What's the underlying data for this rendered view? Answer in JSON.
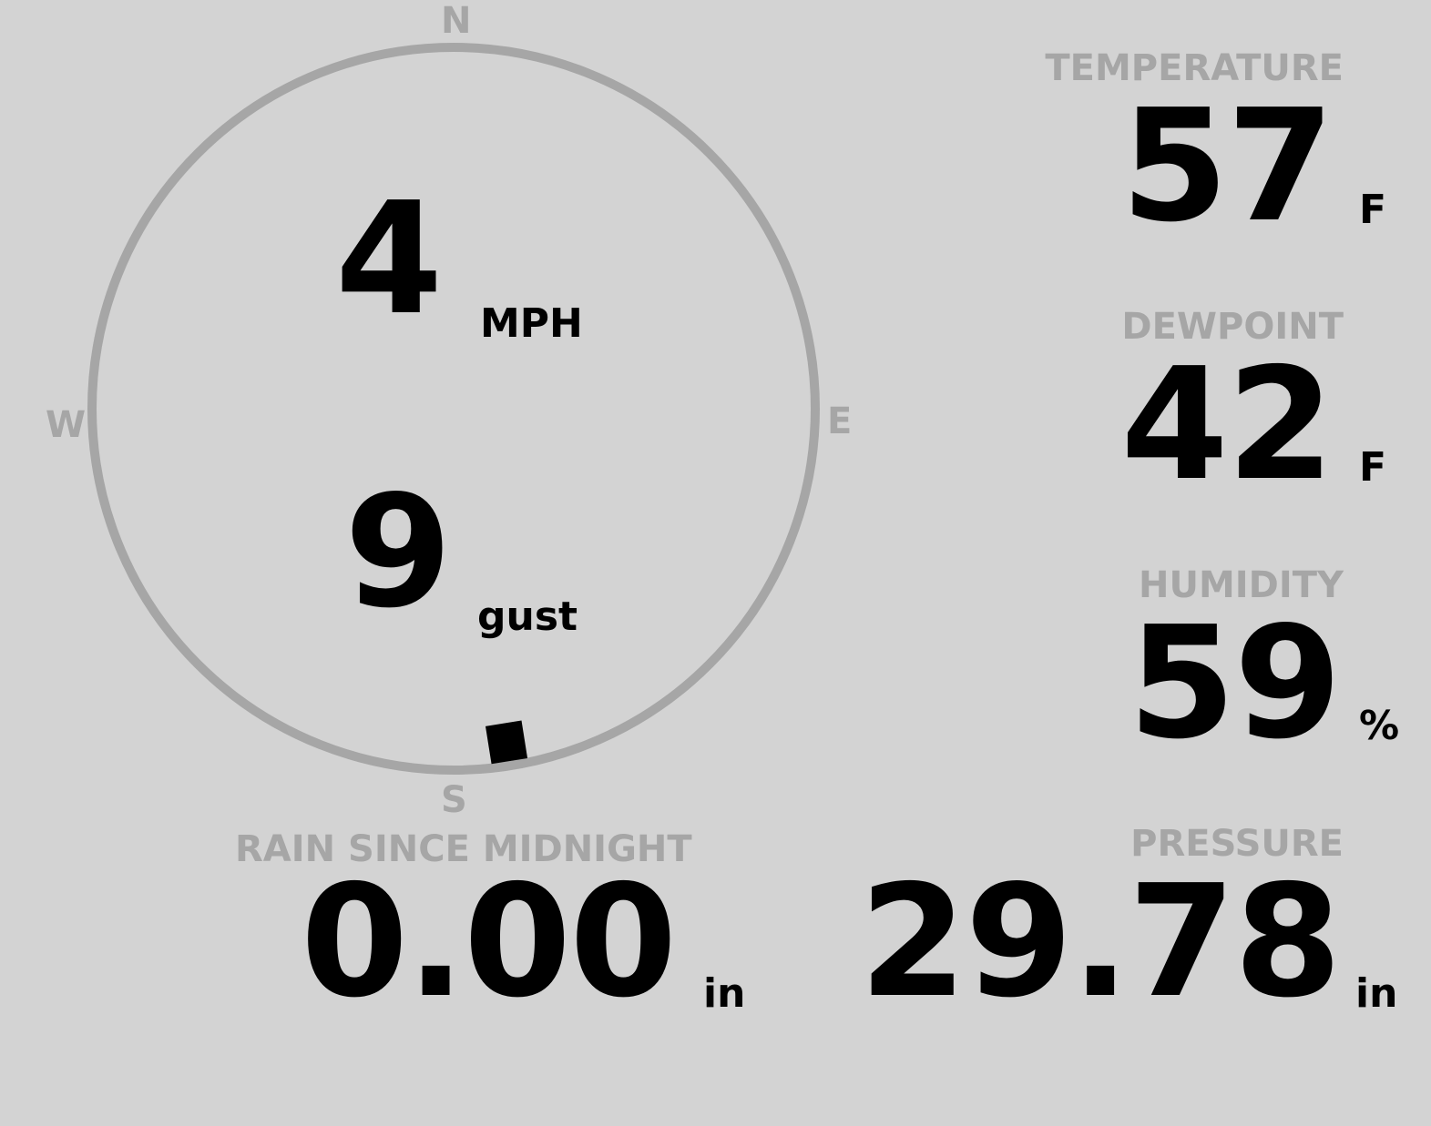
{
  "wind": {
    "speed": "4",
    "speed_unit": "MPH",
    "gust": "9",
    "gust_label": "gust",
    "direction_degrees": 171,
    "compass": {
      "n": "N",
      "e": "E",
      "s": "S",
      "w": "W"
    }
  },
  "temperature": {
    "label": "TEMPERATURE",
    "value": "57",
    "unit": "F"
  },
  "dewpoint": {
    "label": "DEWPOINT",
    "value": "42",
    "unit": "F"
  },
  "humidity": {
    "label": "HUMIDITY",
    "value": "59",
    "unit": "%"
  },
  "rain": {
    "label": "RAIN SINCE MIDNIGHT",
    "value": "0.00",
    "unit": "in"
  },
  "pressure": {
    "label": "PRESSURE",
    "value": "29.78",
    "unit": "in"
  },
  "colors": {
    "background": "#d3d3d3",
    "label": "#a6a6a6",
    "value": "#000000",
    "ring": "#a6a6a6"
  }
}
